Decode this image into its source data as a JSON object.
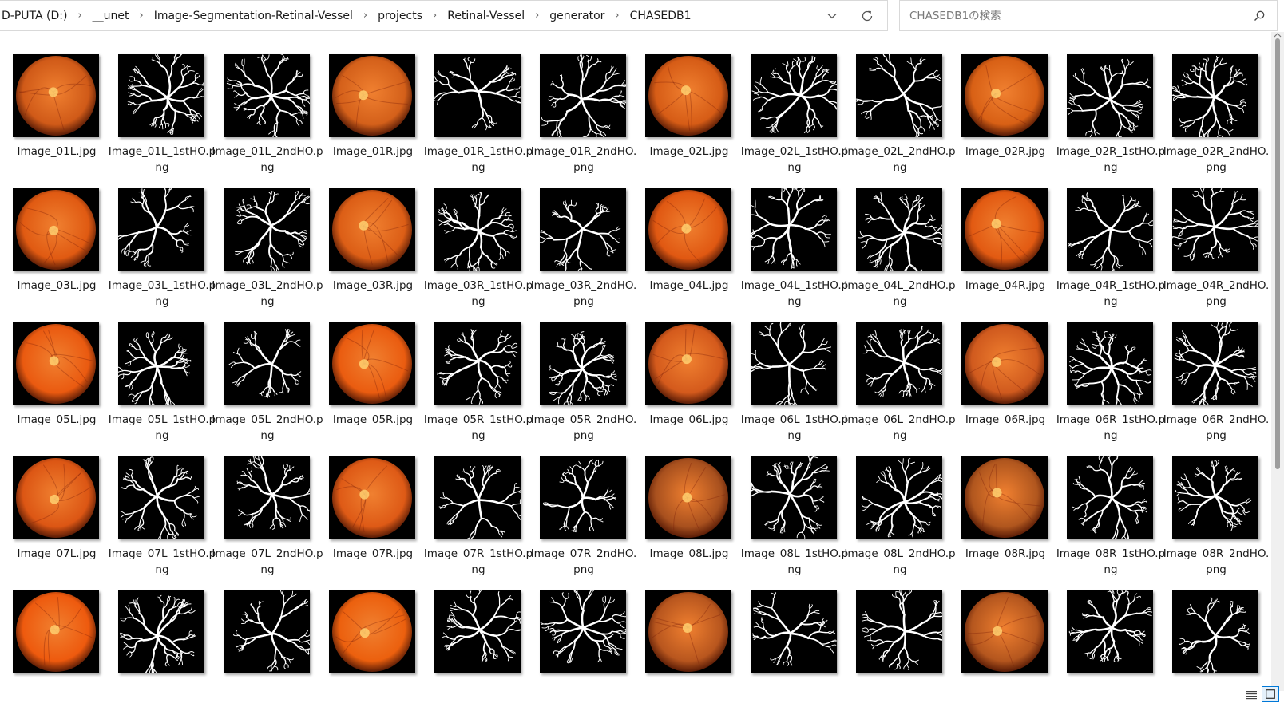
{
  "breadcrumb": [
    "D-PUTA (D:)",
    "__unet",
    "Image-Segmentation-Retinal-Vessel",
    "projects",
    "Retinal-Vessel",
    "generator",
    "CHASEDB1"
  ],
  "search": {
    "placeholder": "CHASEDB1の検索"
  },
  "files": [
    {
      "name": "Image_01L.jpg",
      "type": "fundus",
      "tint": "#d05a18"
    },
    {
      "name": "Image_01L_1stHO.png",
      "type": "vessel"
    },
    {
      "name": "Image_01L_2ndHO.png",
      "type": "vessel"
    },
    {
      "name": "Image_01R.jpg",
      "type": "fundus",
      "tint": "#d4601a"
    },
    {
      "name": "Image_01R_1stHO.png",
      "type": "vessel"
    },
    {
      "name": "Image_01R_2ndHO.png",
      "type": "vessel"
    },
    {
      "name": "Image_02L.jpg",
      "type": "fundus",
      "tint": "#d65c16"
    },
    {
      "name": "Image_02L_1stHO.png",
      "type": "vessel"
    },
    {
      "name": "Image_02L_2ndHO.png",
      "type": "vessel"
    },
    {
      "name": "Image_02R.jpg",
      "type": "fundus",
      "tint": "#d86015"
    },
    {
      "name": "Image_02R_1stHO.png",
      "type": "vessel"
    },
    {
      "name": "Image_02R_2ndHO.png",
      "type": "vessel"
    },
    {
      "name": "Image_03L.jpg",
      "type": "fundus",
      "tint": "#e05a12"
    },
    {
      "name": "Image_03L_1stHO.png",
      "type": "vessel"
    },
    {
      "name": "Image_03L_2ndHO.png",
      "type": "vessel"
    },
    {
      "name": "Image_03R.jpg",
      "type": "fundus",
      "tint": "#dc5e16"
    },
    {
      "name": "Image_03R_1stHO.png",
      "type": "vessel"
    },
    {
      "name": "Image_03R_2ndHO.png",
      "type": "vessel"
    },
    {
      "name": "Image_04L.jpg",
      "type": "fundus",
      "tint": "#e05812"
    },
    {
      "name": "Image_04L_1stHO.png",
      "type": "vessel"
    },
    {
      "name": "Image_04L_2ndHO.png",
      "type": "vessel"
    },
    {
      "name": "Image_04R.jpg",
      "type": "fundus",
      "tint": "#e25a12"
    },
    {
      "name": "Image_04R_1stHO.png",
      "type": "vessel"
    },
    {
      "name": "Image_04R_2ndHO.png",
      "type": "vessel"
    },
    {
      "name": "Image_05L.jpg",
      "type": "fundus",
      "tint": "#ea5a10"
    },
    {
      "name": "Image_05L_1stHO.png",
      "type": "vessel"
    },
    {
      "name": "Image_05L_2ndHO.png",
      "type": "vessel"
    },
    {
      "name": "Image_05R.jpg",
      "type": "fundus",
      "tint": "#ea5c10"
    },
    {
      "name": "Image_05R_1stHO.png",
      "type": "vessel"
    },
    {
      "name": "Image_05R_2ndHO.png",
      "type": "vessel"
    },
    {
      "name": "Image_06L.jpg",
      "type": "fundus",
      "tint": "#d45a1c"
    },
    {
      "name": "Image_06L_1stHO.png",
      "type": "vessel"
    },
    {
      "name": "Image_06L_2ndHO.png",
      "type": "vessel"
    },
    {
      "name": "Image_06R.jpg",
      "type": "fundus",
      "tint": "#d05a1e"
    },
    {
      "name": "Image_06R_1stHO.png",
      "type": "vessel"
    },
    {
      "name": "Image_06R_2ndHO.png",
      "type": "vessel"
    },
    {
      "name": "Image_07L.jpg",
      "type": "fundus",
      "tint": "#dc5614"
    },
    {
      "name": "Image_07L_1stHO.png",
      "type": "vessel"
    },
    {
      "name": "Image_07L_2ndHO.png",
      "type": "vessel"
    },
    {
      "name": "Image_07R.jpg",
      "type": "fundus",
      "tint": "#de5a16"
    },
    {
      "name": "Image_07R_1stHO.png",
      "type": "vessel"
    },
    {
      "name": "Image_07R_2ndHO.png",
      "type": "vessel"
    },
    {
      "name": "Image_08L.jpg",
      "type": "fundus",
      "tint": "#a8501e"
    },
    {
      "name": "Image_08L_1stHO.png",
      "type": "vessel"
    },
    {
      "name": "Image_08L_2ndHO.png",
      "type": "vessel"
    },
    {
      "name": "Image_08R.jpg",
      "type": "fundus",
      "tint": "#b0561e"
    },
    {
      "name": "Image_08R_1stHO.png",
      "type": "vessel"
    },
    {
      "name": "Image_08R_2ndHO.png",
      "type": "vessel"
    },
    {
      "name": "",
      "type": "fundus",
      "tint": "#ee5a0e"
    },
    {
      "name": "",
      "type": "vessel"
    },
    {
      "name": "",
      "type": "vessel"
    },
    {
      "name": "",
      "type": "fundus",
      "tint": "#ec600e"
    },
    {
      "name": "",
      "type": "vessel"
    },
    {
      "name": "",
      "type": "vessel"
    },
    {
      "name": "",
      "type": "fundus",
      "tint": "#b8561e"
    },
    {
      "name": "",
      "type": "vessel"
    },
    {
      "name": "",
      "type": "vessel"
    },
    {
      "name": "",
      "type": "fundus",
      "tint": "#b4561e"
    },
    {
      "name": "",
      "type": "vessel"
    },
    {
      "name": "",
      "type": "vessel"
    }
  ]
}
